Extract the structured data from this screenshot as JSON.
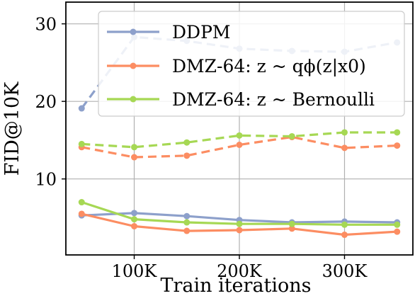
{
  "chart_data": {
    "type": "line",
    "xlabel": "Train iterations",
    "ylabel": "FID@10K",
    "xlim": [
      35000,
      365000
    ],
    "ylim": [
      0.2,
      32.8
    ],
    "xticks": [
      100000,
      200000,
      300000
    ],
    "xtick_labels": [
      "100K",
      "200K",
      "300K"
    ],
    "yticks": [
      10,
      20,
      30
    ],
    "ytick_labels": [
      "10",
      "20",
      "30"
    ],
    "grid": true,
    "legend_position": "upper-right",
    "x": [
      50000,
      100000,
      150000,
      200000,
      250000,
      300000,
      350000
    ],
    "series": [
      {
        "name": "DDPM",
        "color": "#8da0cb",
        "dashed": [
          19.1,
          28.3,
          27.8,
          26.8,
          26.5,
          26.4,
          27.6
        ],
        "solid": [
          5.3,
          5.6,
          5.2,
          4.7,
          4.4,
          4.5,
          4.4
        ]
      },
      {
        "name": "DMZ-64: z ~ qϕ(z|x0)",
        "color": "#fc8d62",
        "dashed": [
          14.1,
          12.8,
          13.0,
          14.4,
          15.4,
          14.0,
          14.3
        ],
        "solid": [
          5.5,
          3.9,
          3.3,
          3.4,
          3.6,
          2.8,
          3.2
        ]
      },
      {
        "name": "DMZ-64: z ~ Bernoulli",
        "color": "#a6d854",
        "dashed": [
          14.5,
          14.1,
          14.7,
          15.6,
          15.5,
          16.0,
          16.0
        ],
        "solid": [
          7.0,
          4.8,
          4.4,
          4.2,
          4.2,
          4.1,
          4.1
        ]
      }
    ]
  }
}
